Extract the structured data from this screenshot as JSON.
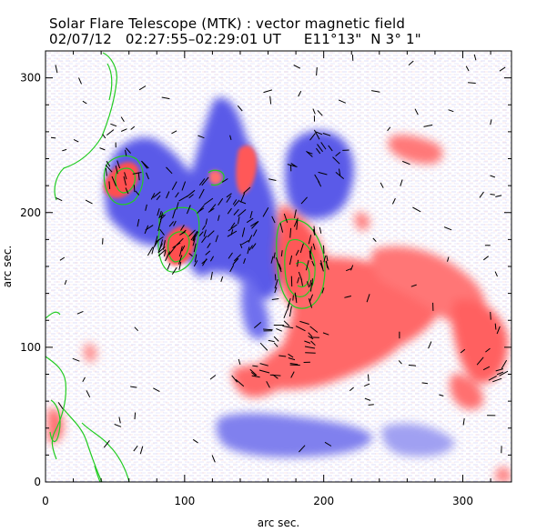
{
  "title": "Solar Flare Telescope (MTK) : vector magnetic field",
  "subtitle": "02/07/12   02:27:55–02:29:01 UT     E11°13\"  N 3° 1\"",
  "chart_data": {
    "type": "heatmap",
    "title": "Solar Flare Telescope (MTK) : vector magnetic field",
    "subtitle": "02/07/12   02:27:55–02:29:01 UT     E11°13\"  N 3° 1\"",
    "xlabel": "arc sec.",
    "ylabel": "arc sec.",
    "xlim": [
      0,
      335
    ],
    "ylim": [
      0,
      320
    ],
    "xticks": [
      0,
      100,
      200,
      300
    ],
    "yticks": [
      0,
      100,
      200,
      300
    ],
    "x_tick_labels": [
      "0",
      "100",
      "200",
      "300"
    ],
    "y_tick_labels": [
      "0",
      "100",
      "200",
      "300"
    ],
    "colors": {
      "positive": "#ff6868",
      "negative": "#5a5ae8",
      "contour": "#22cc22",
      "vector": "#000000"
    }
  }
}
